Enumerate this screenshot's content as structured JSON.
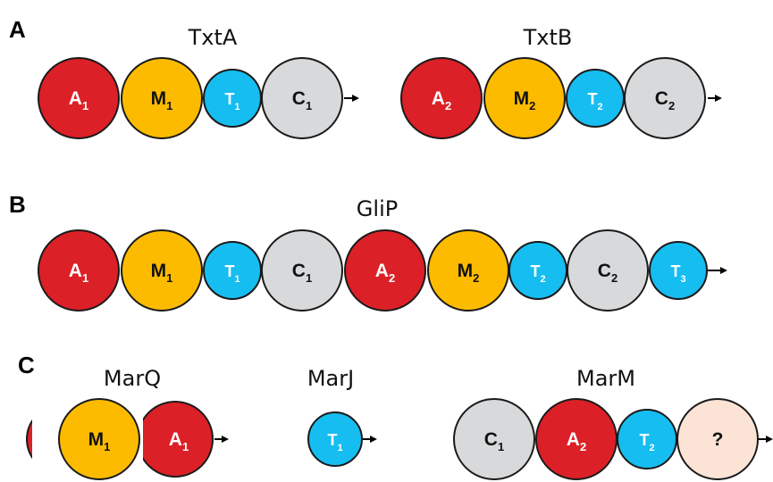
{
  "colors": {
    "adenylation": "#dc2027",
    "methylation": "#fdbb00",
    "thiolation": "#16bdf0",
    "condensation": "#d8d9db",
    "unknown": "#fbe3d5",
    "outline": "#1a1a1a"
  },
  "panels": [
    {
      "letter": "A",
      "proteins": [
        {
          "name": "TxtA",
          "domains": [
            {
              "type": "adenylation",
              "letter": "A",
              "sub": "1"
            },
            {
              "type": "methylation",
              "letter": "M",
              "sub": "1"
            },
            {
              "type": "thiolation",
              "letter": "T",
              "sub": "1"
            },
            {
              "type": "condensation",
              "letter": "C",
              "sub": "1"
            }
          ]
        },
        {
          "name": "TxtB",
          "domains": [
            {
              "type": "adenylation",
              "letter": "A",
              "sub": "2"
            },
            {
              "type": "methylation",
              "letter": "M",
              "sub": "2"
            },
            {
              "type": "thiolation",
              "letter": "T",
              "sub": "2"
            },
            {
              "type": "condensation",
              "letter": "C",
              "sub": "2"
            }
          ]
        }
      ]
    },
    {
      "letter": "B",
      "proteins": [
        {
          "name": "GliP",
          "domains": [
            {
              "type": "adenylation",
              "letter": "A",
              "sub": "1"
            },
            {
              "type": "methylation",
              "letter": "M",
              "sub": "1"
            },
            {
              "type": "thiolation",
              "letter": "T",
              "sub": "1"
            },
            {
              "type": "condensation",
              "letter": "C",
              "sub": "1"
            },
            {
              "type": "adenylation",
              "letter": "A",
              "sub": "2"
            },
            {
              "type": "methylation",
              "letter": "M",
              "sub": "2"
            },
            {
              "type": "thiolation",
              "letter": "T",
              "sub": "2"
            },
            {
              "type": "condensation",
              "letter": "C",
              "sub": "2"
            },
            {
              "type": "thiolation",
              "letter": "T",
              "sub": "3"
            }
          ]
        }
      ]
    },
    {
      "letter": "C",
      "proteins": [
        {
          "name": "MarQ",
          "domains": [
            {
              "type": "adenylation",
              "letter": "",
              "sub": ""
            },
            {
              "type": "methylation",
              "letter": "M",
              "sub": "1"
            },
            {
              "type": "adenylation",
              "letter": "A",
              "sub": "1"
            }
          ]
        },
        {
          "name": "MarJ",
          "domains": [
            {
              "type": "thiolation",
              "letter": "T",
              "sub": "1"
            }
          ]
        },
        {
          "name": "MarM",
          "domains": [
            {
              "type": "condensation",
              "letter": "C",
              "sub": "1"
            },
            {
              "type": "adenylation",
              "letter": "A",
              "sub": "2"
            },
            {
              "type": "thiolation",
              "letter": "T",
              "sub": "2"
            },
            {
              "type": "unknown",
              "letter": "?",
              "sub": ""
            }
          ]
        }
      ]
    }
  ]
}
